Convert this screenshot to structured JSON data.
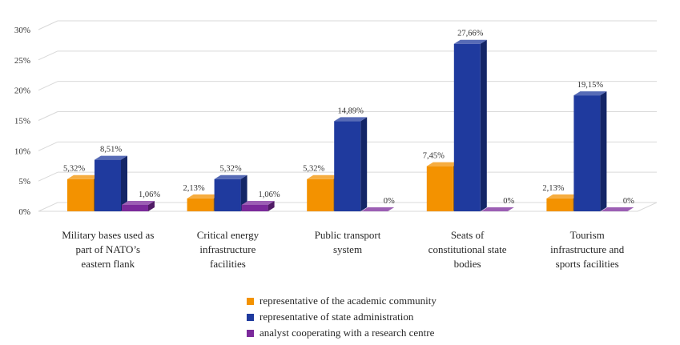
{
  "chart_data": {
    "type": "bar",
    "categories": [
      [
        "Military bases used as",
        "part of NATO’s",
        "eastern flank"
      ],
      [
        "Critical energy",
        "infrastructure",
        "facilities"
      ],
      [
        "Public transport",
        "system"
      ],
      [
        "Seats of",
        "constitutional state",
        "bodies"
      ],
      [
        "Tourism",
        "infrastructure and",
        "sports facilities"
      ]
    ],
    "series": [
      {
        "name": "representative of the academic community",
        "color": "#f39200",
        "values": [
          5.32,
          2.13,
          5.32,
          7.45,
          2.13
        ],
        "labels": [
          "5,32%",
          "2,13%",
          "5,32%",
          "7,45%",
          "2,13%"
        ]
      },
      {
        "name": "representative of state administration",
        "color": "#1f3a9e",
        "values": [
          8.51,
          5.32,
          14.89,
          27.66,
          19.15
        ],
        "labels": [
          "8,51%",
          "5,32%",
          "14,89%",
          "27,66%",
          "19,15%"
        ]
      },
      {
        "name": "analyst cooperating with a research centre",
        "color": "#7b2a9b",
        "values": [
          1.06,
          1.06,
          0,
          0,
          0
        ],
        "labels": [
          "1,06%",
          "1,06%",
          "0%",
          "0%",
          "0%"
        ]
      }
    ],
    "y_ticks": [
      "0%",
      "5%",
      "10%",
      "15%",
      "20%",
      "25%",
      "30%"
    ],
    "y_tick_values": [
      0,
      5,
      10,
      15,
      20,
      25,
      30
    ],
    "ylim": [
      0,
      30
    ],
    "grid": true,
    "legend_position": "bottom",
    "style": "3d-column"
  }
}
